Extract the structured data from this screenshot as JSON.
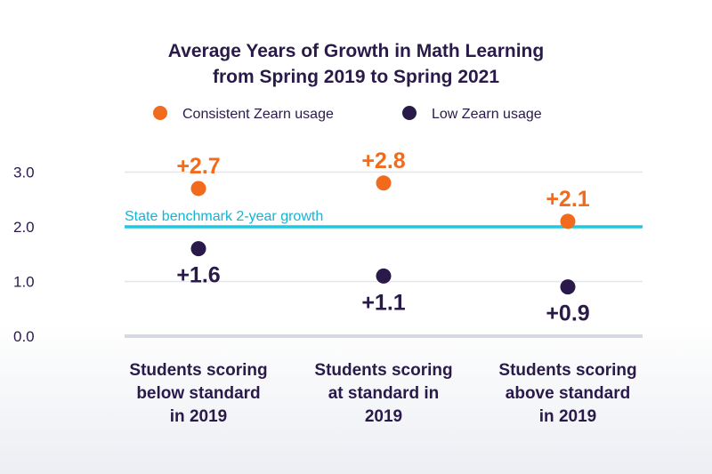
{
  "chart_data": {
    "type": "scatter",
    "title_lines": [
      "Average Years of Growth in Math Learning",
      "from Spring 2019 to Spring 2021"
    ],
    "categories": [
      [
        "Students scoring",
        "below standard",
        "in 2019"
      ],
      [
        "Students scoring",
        "at standard in",
        "2019"
      ],
      [
        "Students scoring",
        "above standard",
        "in 2019"
      ]
    ],
    "series": [
      {
        "name": "Consistent Zearn usage",
        "color": "#f26b1d",
        "values": [
          2.7,
          2.8,
          2.1
        ],
        "labels": [
          "+2.7",
          "+2.8",
          "+2.1"
        ]
      },
      {
        "name": "Low Zearn usage",
        "color": "#2a1a4a",
        "values": [
          1.6,
          1.1,
          0.9
        ],
        "labels": [
          "+1.6",
          "+1.1",
          "+0.9"
        ]
      }
    ],
    "y_ticks": [
      0,
      1,
      2,
      3
    ],
    "y_tick_labels": [
      "0.0",
      "1.0",
      "2.0",
      "3.0"
    ],
    "ylim": [
      0,
      3.2
    ],
    "reference_line": {
      "value": 2.0,
      "label": "State benchmark 2-year growth",
      "color": "#1ec8e0"
    },
    "grid": true,
    "legend_position": "top"
  }
}
